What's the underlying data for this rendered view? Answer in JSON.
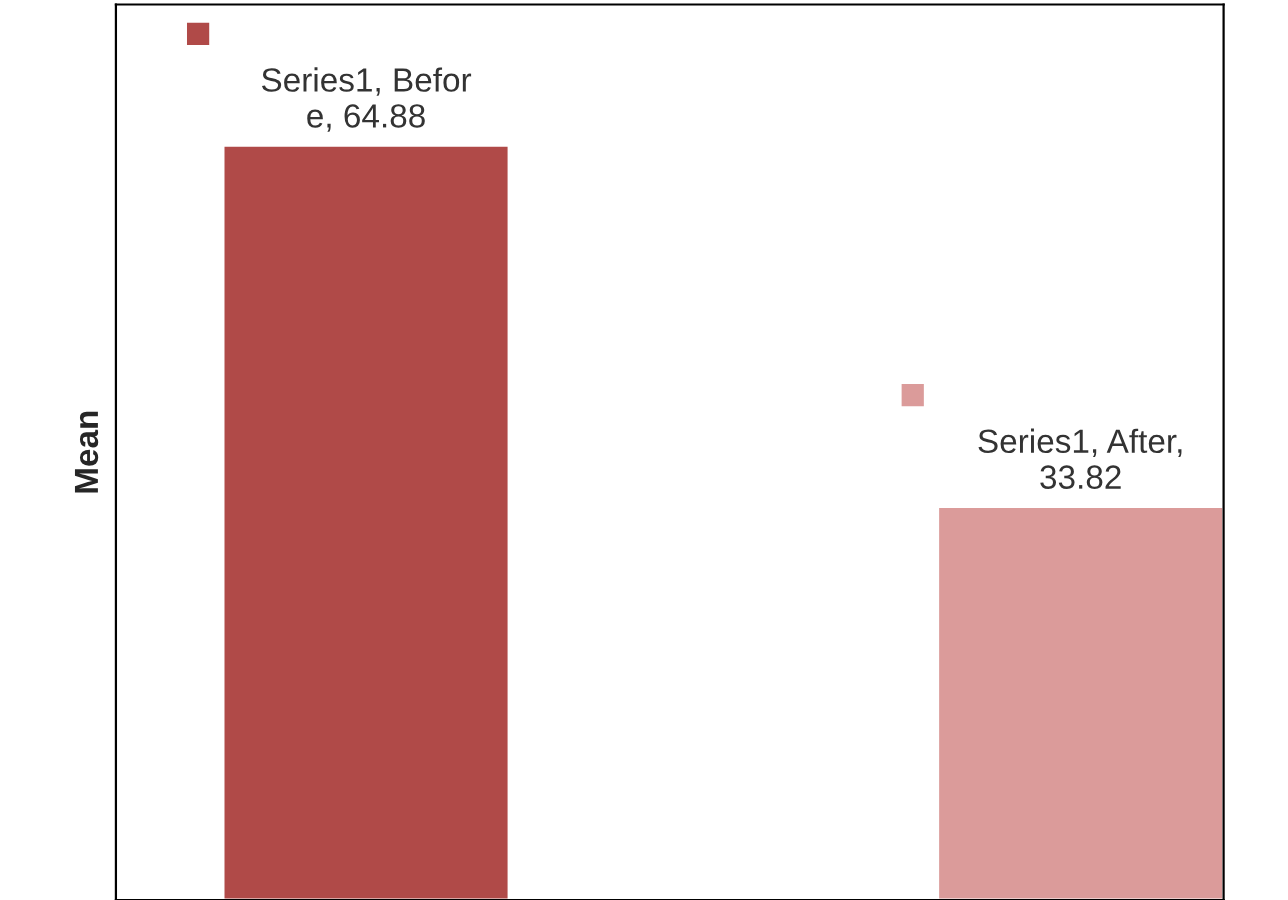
{
  "chart_data": {
    "type": "bar",
    "ylabel": "Mean",
    "categories": [
      null,
      null
    ],
    "values": [
      64.88,
      33.82
    ],
    "colors": [
      "#b04a48",
      "#db9b9a"
    ],
    "value_labels": [
      "Series1, Befor\ne, 64.88",
      "Series1, After,\n33.82"
    ],
    "ylim": [
      0,
      77
    ],
    "grid": false,
    "legend": false
  }
}
